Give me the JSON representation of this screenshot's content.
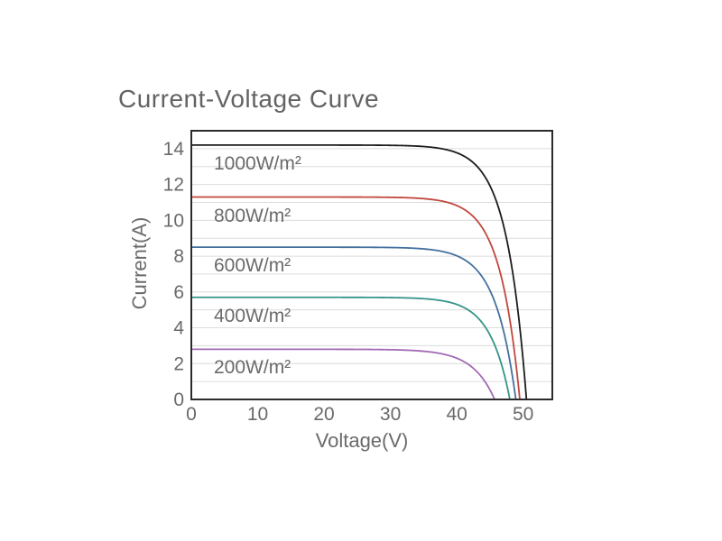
{
  "chart_data": {
    "type": "line",
    "title": "Current-Voltage Curve",
    "xlabel": "Voltage(V)",
    "ylabel": "Current(A)",
    "xlim": [
      0,
      54.4
    ],
    "ylim": [
      0,
      15
    ],
    "x_ticks": [
      0,
      10,
      20,
      30,
      40,
      50
    ],
    "y_ticks": [
      0,
      2,
      4,
      6,
      8,
      10,
      12,
      14
    ],
    "grid": {
      "horizontal_step_A": 1,
      "vertical": false,
      "color": "#dcdcdc"
    },
    "frame_color": "#2a2a2a",
    "tick_text_color": "#6a6a6a",
    "title_color": "#636363",
    "legend_position": "inline-labels-below-curves",
    "series": [
      {
        "label": "1000W/m²",
        "color": "#1c1c1c",
        "isc_A": 14.2,
        "voc_V": 50.5,
        "knee_sharpness_V": 3.0,
        "points": [
          [
            0,
            14.2
          ],
          [
            10,
            14.2
          ],
          [
            20,
            14.2
          ],
          [
            30,
            14.2
          ],
          [
            40,
            13.8
          ],
          [
            45,
            11.9
          ],
          [
            48,
            8.0
          ],
          [
            50,
            2.2
          ],
          [
            50.5,
            0
          ]
        ]
      },
      {
        "label": "800W/m²",
        "color": "#c2473d",
        "isc_A": 11.3,
        "voc_V": 49.5,
        "knee_sharpness_V": 3.0,
        "points": [
          [
            0,
            11.3
          ],
          [
            10,
            11.3
          ],
          [
            20,
            11.3
          ],
          [
            30,
            11.3
          ],
          [
            40,
            10.8
          ],
          [
            45,
            8.8
          ],
          [
            48,
            4.5
          ],
          [
            49.5,
            0
          ]
        ]
      },
      {
        "label": "600W/m²",
        "color": "#44719f",
        "isc_A": 8.5,
        "voc_V": 48.9,
        "knee_sharpness_V": 3.1,
        "points": [
          [
            0,
            8.5
          ],
          [
            10,
            8.5
          ],
          [
            20,
            8.5
          ],
          [
            30,
            8.5
          ],
          [
            40,
            8.0
          ],
          [
            45,
            6.1
          ],
          [
            48,
            2.1
          ],
          [
            48.9,
            0
          ]
        ]
      },
      {
        "label": "400W/m²",
        "color": "#35948b",
        "isc_A": 5.7,
        "voc_V": 48.0,
        "knee_sharpness_V": 3.0,
        "points": [
          [
            0,
            5.7
          ],
          [
            10,
            5.7
          ],
          [
            20,
            5.7
          ],
          [
            30,
            5.7
          ],
          [
            40,
            5.3
          ],
          [
            45,
            3.6
          ],
          [
            47,
            1.6
          ],
          [
            48,
            0
          ]
        ]
      },
      {
        "label": "200W/m²",
        "color": "#a26ab5",
        "isc_A": 2.8,
        "voc_V": 45.7,
        "knee_sharpness_V": 3.3,
        "points": [
          [
            0,
            2.8
          ],
          [
            10,
            2.8
          ],
          [
            20,
            2.8
          ],
          [
            30,
            2.8
          ],
          [
            40,
            2.3
          ],
          [
            43,
            1.6
          ],
          [
            45,
            0.6
          ],
          [
            45.7,
            0
          ]
        ]
      }
    ]
  }
}
